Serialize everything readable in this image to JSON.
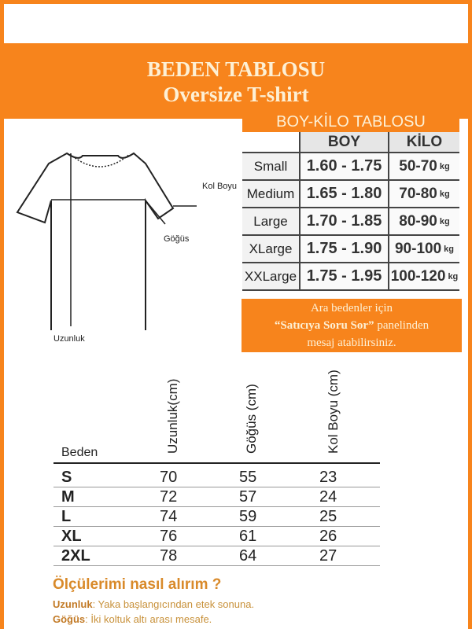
{
  "header": {
    "title": "BEDEN TABLOSU",
    "subtitle": "Oversize T-shirt"
  },
  "diagram": {
    "labels": {
      "sleeve": "Kol Boyu",
      "chest": "Göğüs",
      "length": "Uzunluk"
    }
  },
  "boy_kilo": {
    "title": "BOY-KİLO TABLOSU",
    "columns": [
      "",
      "BOY",
      "KİLO"
    ],
    "unit": "kg",
    "rows": [
      {
        "size": "Small",
        "boy": "1.60 - 1.75",
        "kilo": "50-70"
      },
      {
        "size": "Medium",
        "boy": "1.65 - 1.80",
        "kilo": "70-80"
      },
      {
        "size": "Large",
        "boy": "1.70 - 1.85",
        "kilo": "80-90"
      },
      {
        "size": "XLarge",
        "boy": "1.75 - 1.90",
        "kilo": "90-100"
      },
      {
        "size": "XXLarge",
        "boy": "1.75 - 1.95",
        "kilo": "100-120"
      }
    ]
  },
  "note": {
    "line1": "Ara bedenler için",
    "quote": "“Satıcıya Soru Sor”",
    "line2_rest": " panelinden",
    "line3": "mesaj atabilirsiniz."
  },
  "size_table": {
    "columns": [
      "Beden",
      "Uzunluk(cm)",
      "Göğüs (cm)",
      "Kol Boyu (cm)"
    ],
    "rows": [
      [
        "S",
        "70",
        "55",
        "23"
      ],
      [
        "M",
        "72",
        "57",
        "24"
      ],
      [
        "L",
        "74",
        "59",
        "25"
      ],
      [
        "XL",
        "76",
        "61",
        "26"
      ],
      [
        "2XL",
        "78",
        "64",
        "27"
      ]
    ]
  },
  "how": {
    "title": "Ölçülerimi nasıl alırım ?",
    "items": [
      {
        "term": "Uzunluk",
        "text": ": Yaka başlangıcından etek sonuna."
      },
      {
        "term": "Göğüs",
        "text": ": İki koltuk altı arası mesafe."
      }
    ]
  },
  "colors": {
    "accent": "#f7841c",
    "text_accent": "#d98a2a"
  }
}
